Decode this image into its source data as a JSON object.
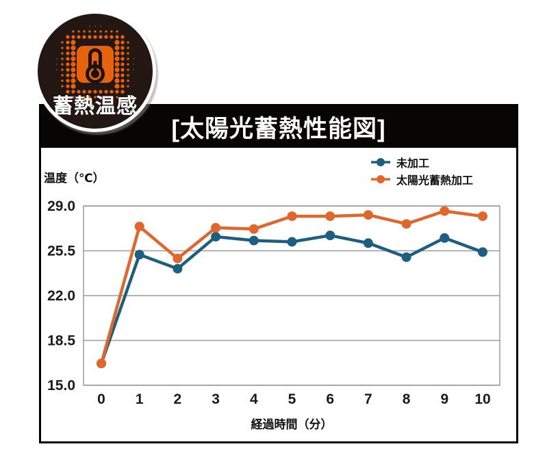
{
  "badge": {
    "label": "蓄熱温感"
  },
  "title": "[太陽光蓄熱性能図]",
  "chart_data": {
    "type": "line",
    "title": "[太陽光蓄熱性能図]",
    "xlabel": "経過時間（分）",
    "ylabel": "温度（℃）",
    "x": [
      0,
      1,
      2,
      3,
      4,
      5,
      6,
      7,
      8,
      9,
      10
    ],
    "x_tick_labels": [
      "0",
      "1",
      "2",
      "3",
      "4",
      "5",
      "6",
      "7",
      "8",
      "9",
      "10"
    ],
    "y_ticks": [
      29.0,
      25.5,
      22.0,
      18.5,
      15.0
    ],
    "y_tick_labels": [
      "29.0",
      "25.5",
      "22.0",
      "18.5",
      "15.0"
    ],
    "ylim": [
      15.0,
      29.0
    ],
    "grid": true,
    "legend_position": "top-right",
    "series": [
      {
        "name": "未加工",
        "color": "#1d5f80",
        "values": [
          16.7,
          25.2,
          24.1,
          26.6,
          26.3,
          26.2,
          26.7,
          26.1,
          25.0,
          26.5,
          25.4
        ]
      },
      {
        "name": "太陽光蓄熱加工",
        "color": "#e2662a",
        "values": [
          16.7,
          27.4,
          24.9,
          27.3,
          27.2,
          28.2,
          28.2,
          28.3,
          27.6,
          28.6,
          28.2
        ]
      }
    ]
  },
  "colors": {
    "grid": "#9b9b9b",
    "titlebar_bg": "#070605",
    "badge_bg": "#221712",
    "badge_orange": "#e8620c",
    "series_blue": "#1d5f80",
    "series_orange": "#e2662a"
  }
}
